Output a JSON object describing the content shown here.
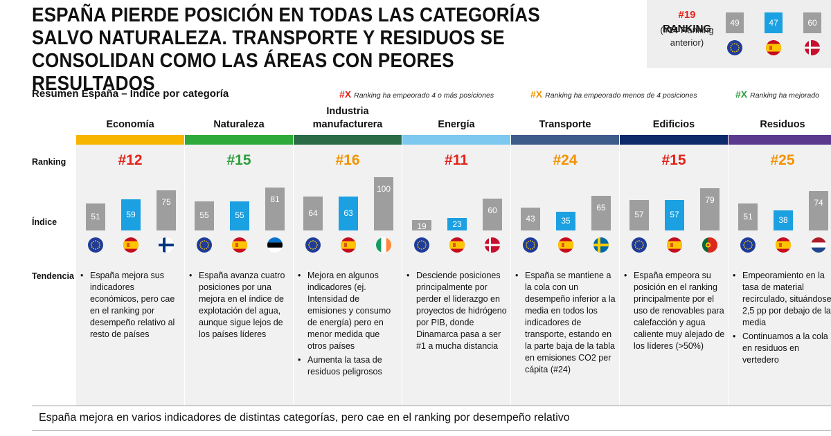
{
  "title": "ESPAÑA PIERDE POSICIÓN EN TODAS LAS CATEGORÍAS SALVO NATURALEZA. TRANSPORTE Y RESIDUOS SE CONSOLIDAN COMO LAS ÁREAS CON PEORES RESULTADOS",
  "overall": {
    "rank": "#19",
    "rank_word": "RANKING",
    "prev_open": "(",
    "prev_rank": "#14",
    "prev_text": "Ranking anterior)",
    "values": [
      49,
      47,
      60
    ],
    "flags": [
      "eu",
      "es",
      "dk"
    ],
    "colors": [
      "#9e9e9e",
      "#1ba0e2",
      "#9e9e9e"
    ]
  },
  "subtitle": "Resumen España – Índice por categoría",
  "legend": [
    {
      "marker": "#X",
      "text": "Ranking ha empeorado 4 o más posiciones",
      "color": "#e2231a"
    },
    {
      "marker": "#X",
      "text": "Ranking ha empeorado menos de 4 posiciones",
      "color": "#f39200"
    },
    {
      "marker": "#X",
      "text": "Ranking ha mejorado",
      "color": "#2e9e3e"
    }
  ],
  "row_labels": {
    "ranking": "Ranking",
    "indice": "Índice",
    "tendencia": "Tendencia"
  },
  "footer": "España mejora en varios indicadores de distintas categorías, pero cae en el ranking por desempeño relativo",
  "colors": {
    "gray_bar": "#9e9e9e",
    "spain_bar": "#1ba0e2",
    "red": "#e2231a",
    "orange": "#f39200",
    "green": "#2e9e3e"
  },
  "chart_data": {
    "type": "bar",
    "title": "Resumen España – Índice por categoría",
    "ylim": [
      0,
      100
    ],
    "series_order": [
      "UE",
      "España",
      "Líder"
    ],
    "categories": [
      {
        "name": "Economía",
        "band": "#f7b500",
        "rank": "#12",
        "rank_color": "#e2231a",
        "values": [
          51,
          59,
          75
        ],
        "flags": [
          "eu",
          "es",
          "fi"
        ],
        "tendencia": [
          "España mejora sus indicadores económicos, pero cae en el ranking por desempeño relativo al resto de países"
        ]
      },
      {
        "name": "Naturaleza",
        "band": "#2eaa3a",
        "rank": "#15",
        "rank_color": "#2e9e3e",
        "values": [
          55,
          55,
          81
        ],
        "flags": [
          "eu",
          "es",
          "ee"
        ],
        "tendencia": [
          "España avanza cuatro posiciones por una mejora en el índice de explotación del agua, aunque sigue lejos de los países líderes"
        ]
      },
      {
        "name": "Industria manufacturera",
        "band": "#2b6b46",
        "rank": "#16",
        "rank_color": "#f39200",
        "values": [
          64,
          63,
          100
        ],
        "flags": [
          "eu",
          "es",
          "ie"
        ],
        "tendencia": [
          "Mejora en algunos indicadores (ej. Intensidad de emisiones y consumo de energía) pero en menor medida que otros países",
          "Aumenta la tasa de residuos peligrosos"
        ]
      },
      {
        "name": "Energía",
        "band": "#7cc8ee",
        "rank": "#11",
        "rank_color": "#e2231a",
        "values": [
          19,
          23,
          60
        ],
        "flags": [
          "eu",
          "es",
          "dk"
        ],
        "tendencia": [
          "Desciende posiciones principalmente por perder el liderazgo en proyectos de hidrógeno por PIB, donde Dinamarca pasa a ser #1 a mucha distancia"
        ]
      },
      {
        "name": "Transporte",
        "band": "#3e5c8a",
        "rank": "#24",
        "rank_color": "#f39200",
        "values": [
          43,
          35,
          65
        ],
        "flags": [
          "eu",
          "es",
          "se"
        ],
        "tendencia": [
          "España se mantiene a la cola con un desempeño inferior a la media en todos los indicadores de transporte, estando en la parte baja de la tabla en emisiones CO2 per cápita (#24)"
        ]
      },
      {
        "name": "Edificios",
        "band": "#0e2a6b",
        "rank": "#15",
        "rank_color": "#e2231a",
        "values": [
          57,
          57,
          79
        ],
        "flags": [
          "eu",
          "es",
          "pt"
        ],
        "tendencia": [
          "España empeora su posición en el ranking principalmente por el uso de renovables para calefacción y agua caliente  muy alejado de los líderes (>50%)"
        ]
      },
      {
        "name": "Residuos",
        "band": "#5b3a8e",
        "rank": "#25",
        "rank_color": "#f39200",
        "values": [
          51,
          38,
          74
        ],
        "flags": [
          "eu",
          "es",
          "nl"
        ],
        "tendencia": [
          "Empeoramiento en la tasa de material recirculado, situándose 2,5 pp por debajo de la media",
          "Continuamos a la cola en residuos en vertedero"
        ]
      }
    ]
  }
}
